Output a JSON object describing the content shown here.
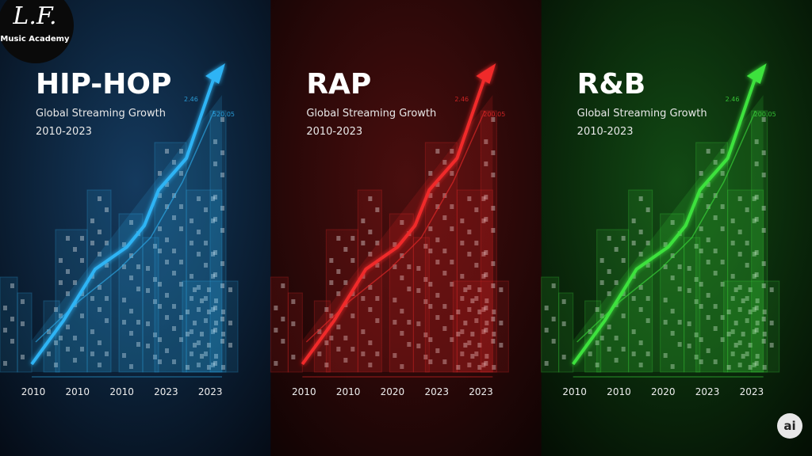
{
  "logo": {
    "monogram": "L.F.",
    "name": "Music Academy"
  },
  "panels": [
    {
      "title": "HIP-HOP",
      "subtitle": "Global Streaming Growth",
      "period": "2010-2023",
      "color": "#2fb4f5",
      "x_labels": [
        "2010",
        "2010",
        "2010",
        "2023",
        "2023"
      ],
      "annotations": [
        "2.46",
        "520.05"
      ]
    },
    {
      "title": "RAP",
      "subtitle": "Global Streaming Growth",
      "period": "2010-2023",
      "color": "#f02a2a",
      "x_labels": [
        "2010",
        "2010",
        "2020",
        "2023",
        "2023"
      ],
      "annotations": [
        "2.46",
        "200.05"
      ]
    },
    {
      "title": "R&B",
      "subtitle": "Global Streaming Growth",
      "period": "2010-2023",
      "color": "#3ee23e",
      "x_labels": [
        "2010",
        "2010",
        "2020",
        "2023",
        "2023"
      ],
      "annotations": [
        "2.46",
        "200.05"
      ]
    }
  ],
  "badge": "ai"
}
